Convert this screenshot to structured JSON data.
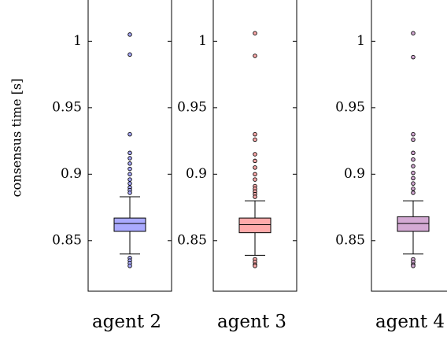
{
  "chart_data": [
    {
      "type": "box",
      "ylabel": "consensus time [s]",
      "xlabel": "agent 2",
      "color": "#aaaaff",
      "ylim": [
        0.812,
        1.031
      ],
      "yticks": [
        0.85,
        0.9,
        0.95,
        1
      ],
      "whisker_low": 0.84,
      "q1": 0.857,
      "median": 0.863,
      "q3": 0.867,
      "whisker_high": 0.883,
      "outliers": [
        1.005,
        0.99,
        0.93,
        0.916,
        0.912,
        0.908,
        0.904,
        0.9,
        0.896,
        0.893,
        0.89,
        0.888,
        0.886,
        0.837,
        0.835,
        0.833,
        0.831
      ]
    },
    {
      "type": "box",
      "xlabel": "agent 3",
      "color": "#ffaaaa",
      "ylim": [
        0.812,
        1.031
      ],
      "yticks": [
        0.85,
        0.9,
        0.95,
        1
      ],
      "whisker_low": 0.839,
      "q1": 0.856,
      "median": 0.862,
      "q3": 0.867,
      "whisker_high": 0.88,
      "outliers": [
        1.006,
        0.989,
        0.93,
        0.926,
        0.915,
        0.91,
        0.905,
        0.9,
        0.896,
        0.891,
        0.889,
        0.887,
        0.885,
        0.883,
        0.836,
        0.834,
        0.832,
        0.831
      ]
    },
    {
      "type": "box",
      "xlabel": "agent 4",
      "color": "#d4aad4",
      "ylim": [
        0.812,
        1.031
      ],
      "yticks": [
        0.85,
        0.9,
        0.95,
        1
      ],
      "whisker_low": 0.84,
      "q1": 0.857,
      "median": 0.863,
      "q3": 0.868,
      "whisker_high": 0.88,
      "outliers": [
        1.006,
        0.988,
        0.93,
        0.926,
        0.916,
        0.911,
        0.906,
        0.901,
        0.897,
        0.893,
        0.889,
        0.886,
        0.836,
        0.834,
        0.832,
        0.831
      ]
    }
  ]
}
